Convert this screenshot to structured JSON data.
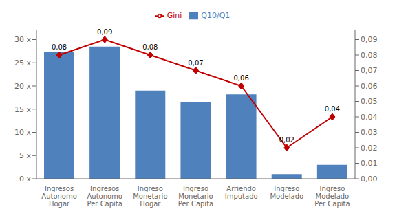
{
  "chart_data": {
    "type": "bar",
    "categories": [
      "Ingresos\nAutonomo\nHogar",
      "Ingresos\nAutonomo\nPer Capita",
      "Ingreso\nMonetario\nHogar",
      "Ingreso\nMonetario\nPer Capita",
      "Arriendo\nImputado",
      "Ingreso\nModelado",
      "Ingreso\nModelado\nPer Capita"
    ],
    "series": [
      {
        "name": "Q10/Q1",
        "type": "bar",
        "color": "#4F81BD",
        "values": [
          27.3,
          28.5,
          19.0,
          16.5,
          18.2,
          1.0,
          3.0
        ]
      },
      {
        "name": "Gini",
        "type": "line",
        "color": "#C00000",
        "marker": "diamond",
        "axis": "y2",
        "data_labels": true,
        "values": [
          0.08,
          0.09,
          0.08,
          0.07,
          0.06,
          0.02,
          0.04
        ],
        "value_labels": [
          "0,08",
          "0,09",
          "0,08",
          "0,07",
          "0,06",
          "0,02",
          "0,04"
        ]
      }
    ],
    "ylim": [
      0,
      32
    ],
    "yticks": [
      {
        "value": 0,
        "label": "0 x"
      },
      {
        "value": 5,
        "label": "5 x"
      },
      {
        "value": 10,
        "label": "10 x"
      },
      {
        "value": 15,
        "label": "15 x"
      },
      {
        "value": 20,
        "label": "20 x"
      },
      {
        "value": 25,
        "label": "25 x"
      },
      {
        "value": 30,
        "label": "30 x"
      }
    ],
    "y2lim": [
      0.0,
      0.096
    ],
    "y2ticks": [
      {
        "value": 0.0,
        "label": "0,00"
      },
      {
        "value": 0.01,
        "label": "0,01"
      },
      {
        "value": 0.02,
        "label": "0,02"
      },
      {
        "value": 0.03,
        "label": "0,03"
      },
      {
        "value": 0.04,
        "label": "0,04"
      },
      {
        "value": 0.05,
        "label": "0,05"
      },
      {
        "value": 0.06,
        "label": "0,06"
      },
      {
        "value": 0.07,
        "label": "0,07"
      },
      {
        "value": 0.08,
        "label": "0,08"
      },
      {
        "value": 0.09,
        "label": "0,09"
      }
    ],
    "legend": "top",
    "grid": false
  }
}
